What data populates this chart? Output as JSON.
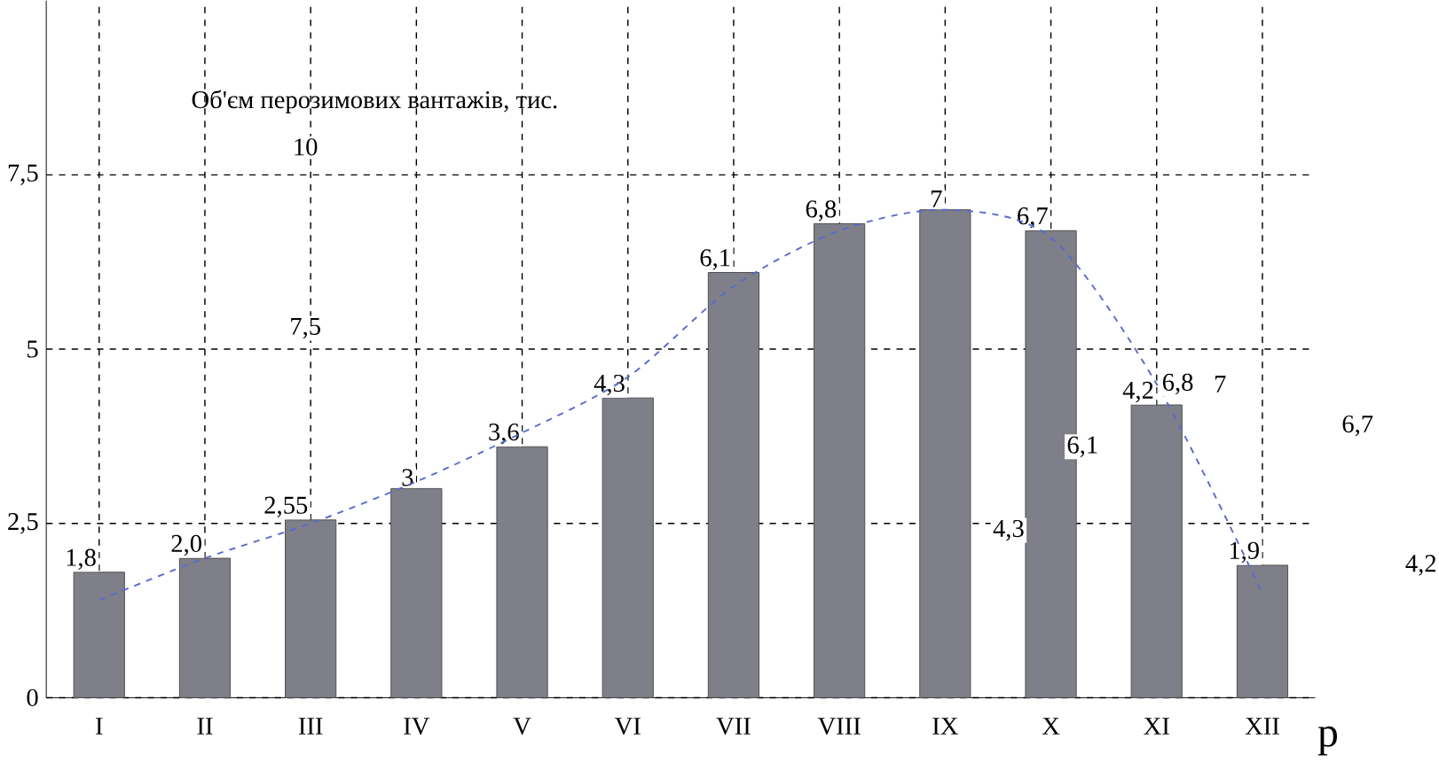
{
  "chart_data": {
    "type": "bar",
    "title": "Об'єм перозимових вантажів, тис.",
    "xlabel": "р",
    "categories": [
      "I",
      "II",
      "III",
      "IV",
      "V",
      "VI",
      "VII",
      "VIII",
      "IX",
      "X",
      "XI",
      "XII"
    ],
    "series": [
      {
        "color": "#7f7f8a",
        "values": [
          1.8,
          2.0,
          2.55,
          3,
          3.6,
          4.3,
          6.1,
          6.8,
          7,
          6.7,
          4.2,
          1.9
        ],
        "value_labels": [
          "1,8",
          "2,0",
          "2,55",
          "3",
          "3,6",
          "4,3",
          "6,1",
          "6,8",
          "7",
          "6,7",
          "4,2",
          "1,9"
        ]
      },
      {
        "type": "line",
        "color": "#5a6acb",
        "line_style": "dashed",
        "values": [
          1.4,
          2.0,
          2.5,
          3.1,
          3.8,
          4.6,
          5.9,
          6.7,
          7.0,
          6.6,
          4.5,
          1.5
        ]
      }
    ],
    "ylim": [
      0,
      10
    ],
    "yticks": [
      0,
      {
        "value": 2.5,
        "label": "2,5"
      },
      5,
      {
        "value": 7.5,
        "label": "7,5"
      }
    ],
    "grid": true,
    "annotations": [
      "10",
      "7,5",
      "6,8",
      "7",
      "6,7",
      "6,1",
      "4,3",
      "4,2"
    ]
  }
}
